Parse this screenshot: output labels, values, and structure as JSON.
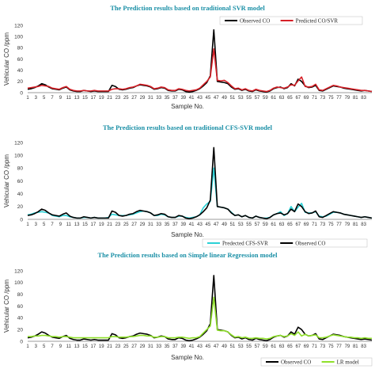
{
  "chart_data": [
    {
      "type": "line",
      "title": "The Prediction results based  on traditional SVR model",
      "xlabel": "Sample No.",
      "ylabel": "Vehicular CO /ppm",
      "ylim": [
        0,
        120
      ],
      "yticks": [
        0,
        20,
        40,
        60,
        80,
        100,
        120
      ],
      "xticks": [
        1,
        3,
        5,
        7,
        9,
        11,
        13,
        15,
        17,
        19,
        21,
        23,
        25,
        27,
        29,
        31,
        33,
        35,
        37,
        39,
        41,
        43,
        45,
        47,
        49,
        51,
        53,
        55,
        57,
        59,
        61,
        63,
        65,
        67,
        69,
        71,
        73,
        75,
        77,
        79,
        81,
        83
      ],
      "xlim": [
        1,
        85
      ],
      "legend_position": "top-right",
      "series": [
        {
          "name": "Observed CO",
          "color": "#000000",
          "values": [
            6,
            7,
            9,
            12,
            16,
            14,
            10,
            7,
            6,
            5,
            8,
            10,
            5,
            3,
            2,
            2,
            4,
            3,
            2,
            3,
            2,
            2,
            2,
            2,
            13,
            11,
            6,
            5,
            6,
            8,
            9,
            12,
            14,
            13,
            12,
            10,
            6,
            7,
            9,
            8,
            4,
            3,
            3,
            6,
            5,
            2,
            1,
            2,
            4,
            7,
            12,
            18,
            30,
            112,
            20,
            19,
            18,
            16,
            10,
            6,
            7,
            4,
            6,
            3,
            2,
            5,
            3,
            2,
            1,
            3,
            7,
            9,
            10,
            7,
            9,
            16,
            12,
            24,
            20,
            12,
            9,
            10,
            13,
            4,
            3,
            6,
            9,
            12,
            11,
            10,
            8,
            7,
            6,
            5,
            4,
            3,
            4,
            3,
            2
          ]
        },
        {
          "name": "Predicted CO/SVR",
          "color": "#d62027",
          "values": [
            8,
            9,
            10,
            11,
            13,
            12,
            11,
            8,
            7,
            6,
            9,
            11,
            6,
            4,
            3,
            3,
            4,
            3,
            3,
            4,
            3,
            3,
            3,
            3,
            6,
            7,
            7,
            6,
            7,
            9,
            10,
            12,
            15,
            14,
            13,
            11,
            7,
            8,
            10,
            9,
            5,
            4,
            4,
            7,
            6,
            4,
            3,
            4,
            5,
            8,
            14,
            20,
            28,
            78,
            22,
            21,
            22,
            18,
            12,
            7,
            8,
            5,
            7,
            4,
            3,
            6,
            4,
            3,
            2,
            4,
            8,
            10,
            9,
            8,
            10,
            14,
            13,
            21,
            28,
            11,
            10,
            11,
            15,
            5,
            4,
            7,
            10,
            13,
            12,
            10,
            9,
            8,
            7,
            6,
            5,
            4,
            4,
            3,
            2
          ]
        }
      ]
    },
    {
      "type": "line",
      "title": "The Prediction results based  on traditional  CFS-SVR model",
      "xlabel": "Sample No.",
      "ylabel": "Vehicular CO /ppm",
      "ylim": [
        0,
        120
      ],
      "yticks": [
        0,
        20,
        40,
        60,
        80,
        100,
        120
      ],
      "xticks": [
        1,
        3,
        5,
        7,
        9,
        11,
        13,
        15,
        17,
        19,
        21,
        23,
        25,
        27,
        29,
        31,
        33,
        35,
        37,
        39,
        41,
        43,
        45,
        47,
        49,
        51,
        53,
        55,
        57,
        59,
        61,
        63,
        65,
        67,
        69,
        71,
        73,
        75,
        77,
        79,
        81,
        83
      ],
      "xlim": [
        1,
        85
      ],
      "legend_position": "bottom-right",
      "series": [
        {
          "name": "Predected CFS-SVR",
          "color": "#2bd1d6",
          "values": [
            7,
            8,
            10,
            11,
            12,
            11,
            10,
            6,
            5,
            4,
            6,
            6,
            4,
            3,
            2,
            2,
            3,
            3,
            2,
            3,
            2,
            2,
            2,
            3,
            8,
            7,
            6,
            6,
            6,
            7,
            8,
            10,
            12,
            13,
            12,
            10,
            6,
            6,
            8,
            7,
            4,
            3,
            3,
            5,
            5,
            3,
            2,
            3,
            4,
            7,
            18,
            24,
            28,
            80,
            20,
            19,
            18,
            16,
            11,
            6,
            7,
            4,
            6,
            3,
            2,
            5,
            3,
            2,
            2,
            3,
            7,
            9,
            12,
            6,
            9,
            20,
            12,
            19,
            25,
            11,
            10,
            10,
            12,
            5,
            4,
            5,
            8,
            11,
            11,
            10,
            8,
            7,
            6,
            5,
            4,
            3,
            4,
            3,
            2
          ]
        },
        {
          "name": "Observed CO",
          "color": "#000000",
          "values": [
            6,
            7,
            9,
            12,
            16,
            14,
            10,
            7,
            6,
            5,
            8,
            10,
            5,
            3,
            2,
            2,
            4,
            3,
            2,
            3,
            2,
            2,
            2,
            2,
            13,
            11,
            6,
            5,
            6,
            8,
            9,
            12,
            14,
            13,
            12,
            10,
            6,
            7,
            9,
            8,
            4,
            3,
            3,
            6,
            5,
            2,
            1,
            2,
            4,
            7,
            12,
            18,
            30,
            112,
            20,
            19,
            18,
            16,
            10,
            6,
            7,
            4,
            6,
            3,
            2,
            5,
            3,
            2,
            1,
            3,
            7,
            9,
            10,
            7,
            9,
            16,
            12,
            24,
            20,
            12,
            9,
            10,
            13,
            4,
            3,
            6,
            9,
            12,
            11,
            10,
            8,
            7,
            6,
            5,
            4,
            3,
            4,
            3,
            2
          ]
        }
      ]
    },
    {
      "type": "line",
      "title": "The Prediction results based  on Simple linear Regression model",
      "xlabel": "Sample No.",
      "ylabel": "Vehicular CO /ppm",
      "ylim": [
        0,
        120
      ],
      "yticks": [
        0,
        20,
        40,
        60,
        80,
        100,
        120
      ],
      "xticks": [
        1,
        3,
        5,
        7,
        9,
        11,
        13,
        15,
        17,
        19,
        21,
        23,
        25,
        27,
        29,
        31,
        33,
        35,
        37,
        39,
        41,
        43,
        45,
        47,
        49,
        51,
        53,
        55,
        57,
        59,
        61,
        63,
        65,
        67,
        69,
        71,
        73,
        75,
        77,
        79,
        81,
        83
      ],
      "xlim": [
        1,
        85
      ],
      "legend_position": "bottom-right",
      "series": [
        {
          "name": "Observed CO",
          "color": "#000000",
          "values": [
            6,
            7,
            9,
            12,
            16,
            14,
            10,
            7,
            6,
            5,
            8,
            10,
            5,
            3,
            2,
            2,
            4,
            3,
            2,
            3,
            2,
            2,
            2,
            2,
            13,
            11,
            6,
            5,
            6,
            8,
            9,
            12,
            14,
            13,
            12,
            10,
            6,
            7,
            9,
            8,
            4,
            3,
            3,
            6,
            5,
            2,
            1,
            2,
            4,
            7,
            12,
            18,
            30,
            112,
            20,
            19,
            18,
            16,
            10,
            6,
            7,
            4,
            6,
            3,
            2,
            5,
            3,
            2,
            1,
            3,
            7,
            9,
            10,
            7,
            9,
            16,
            12,
            24,
            20,
            12,
            9,
            10,
            13,
            4,
            3,
            6,
            9,
            12,
            11,
            10,
            8,
            7,
            6,
            5,
            4,
            3,
            4,
            3,
            2
          ]
        },
        {
          "name": "LR model",
          "color": "#8fe02a",
          "values": [
            8,
            8,
            9,
            9,
            10,
            10,
            9,
            8,
            8,
            7,
            8,
            8,
            7,
            6,
            6,
            6,
            6,
            6,
            6,
            6,
            6,
            6,
            6,
            6,
            8,
            8,
            7,
            7,
            7,
            8,
            8,
            9,
            10,
            10,
            9,
            9,
            7,
            7,
            8,
            8,
            6,
            6,
            6,
            7,
            7,
            6,
            5,
            6,
            6,
            8,
            14,
            20,
            26,
            75,
            19,
            18,
            18,
            16,
            11,
            7,
            8,
            6,
            7,
            5,
            5,
            6,
            5,
            5,
            4,
            5,
            8,
            9,
            10,
            8,
            9,
            13,
            10,
            16,
            9,
            12,
            9,
            10,
            11,
            6,
            6,
            7,
            9,
            11,
            10,
            9,
            8,
            7,
            7,
            6,
            6,
            5,
            6,
            5,
            5
          ]
        }
      ]
    }
  ]
}
